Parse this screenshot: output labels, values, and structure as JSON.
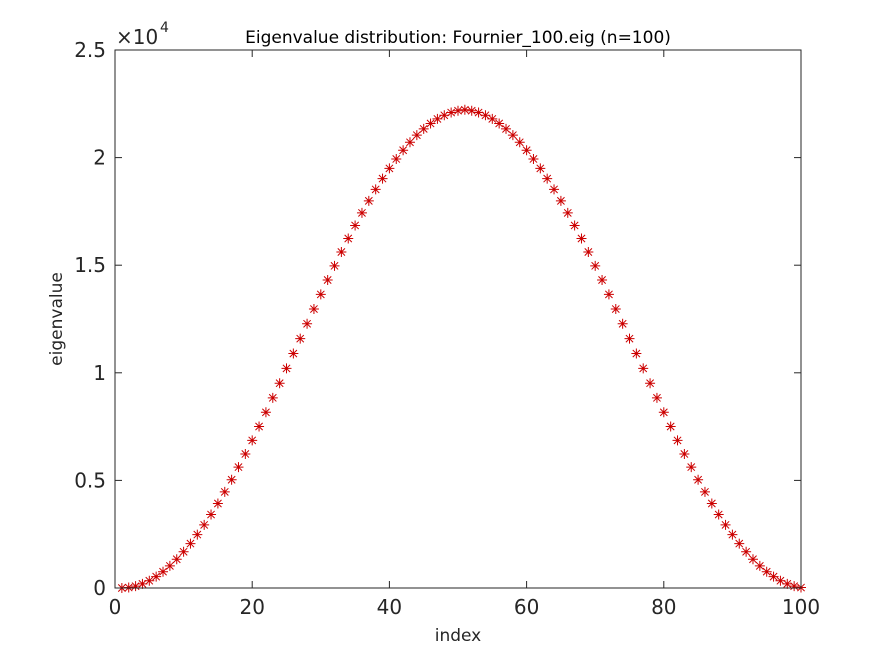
{
  "chart_data": {
    "type": "scatter",
    "title": "Eigenvalue distribution: Fournier_100.eig (n=100)",
    "xlabel": "index",
    "ylabel": "eigenvalue",
    "xlim": [
      0,
      100
    ],
    "ylim": [
      0,
      25000
    ],
    "y_exponent_base": "×10",
    "y_exponent_power": "4",
    "xticks": [
      0,
      20,
      40,
      60,
      80,
      100
    ],
    "xtick_labels": [
      "0",
      "20",
      "40",
      "60",
      "80",
      "100"
    ],
    "yticks": [
      0,
      5000,
      10000,
      15000,
      20000,
      25000
    ],
    "ytick_labels": [
      "0",
      "0.5",
      "1",
      "1.5",
      "2",
      "2.5"
    ],
    "grid": false,
    "marker": "asterisk",
    "marker_color": "#cc0000",
    "x": [
      1,
      2,
      3,
      4,
      5,
      6,
      7,
      8,
      9,
      10,
      11,
      12,
      13,
      14,
      15,
      16,
      17,
      18,
      19,
      20,
      21,
      22,
      23,
      24,
      25,
      26,
      27,
      28,
      29,
      30,
      31,
      32,
      33,
      34,
      35,
      36,
      37,
      38,
      39,
      40,
      41,
      42,
      43,
      44,
      45,
      46,
      47,
      48,
      49,
      50,
      51,
      52,
      53,
      54,
      55,
      56,
      57,
      58,
      59,
      60,
      61,
      62,
      63,
      64,
      65,
      66,
      67,
      68,
      69,
      70,
      71,
      72,
      73,
      74,
      75,
      76,
      77,
      78,
      79,
      80,
      81,
      82,
      83,
      84,
      85,
      86,
      87,
      88,
      89,
      90,
      91,
      92,
      93,
      94,
      95,
      96,
      97,
      98,
      99,
      100
    ],
    "y": [
      0,
      21,
      85,
      191,
      339,
      528,
      758,
      1027,
      1336,
      1682,
      2064,
      2481,
      2932,
      3414,
      3926,
      4465,
      5030,
      5619,
      6229,
      6859,
      7504,
      8164,
      8836,
      9516,
      10203,
      10894,
      11586,
      12277,
      12963,
      13643,
      14313,
      14971,
      15614,
      16240,
      16846,
      17430,
      17989,
      18521,
      19025,
      19497,
      19937,
      20342,
      20711,
      21042,
      21334,
      21586,
      21797,
      21967,
      22094,
      22179,
      22221,
      22179,
      22094,
      21967,
      21797,
      21586,
      21334,
      21042,
      20711,
      20342,
      19937,
      19497,
      19025,
      18521,
      17989,
      17430,
      16846,
      16240,
      15614,
      14971,
      14313,
      13643,
      12963,
      12277,
      11586,
      10894,
      10203,
      9516,
      8836,
      8164,
      7504,
      6859,
      6229,
      5619,
      5030,
      4465,
      3926,
      3414,
      2932,
      2481,
      2064,
      1682,
      1336,
      1027,
      758,
      528,
      339,
      191,
      85,
      21
    ]
  }
}
